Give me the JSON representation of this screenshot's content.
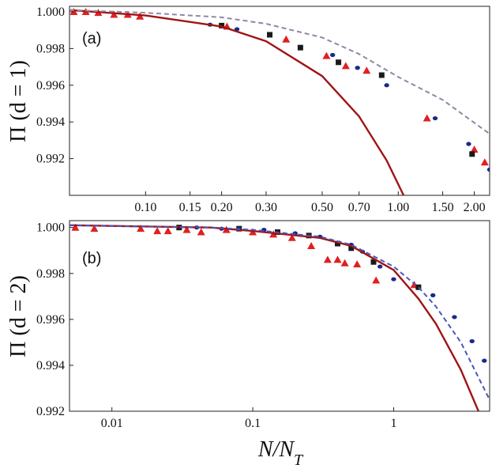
{
  "chart_data": [
    {
      "type": "scatter",
      "panel_label": "(a)",
      "ylabel": "Π (d = 1)",
      "xlabel": "",
      "x_scale": "log",
      "xlim": [
        0.05,
        2.3
      ],
      "ylim": [
        0.99,
        1.0003
      ],
      "x_ticks": [
        0.1,
        0.15,
        0.2,
        0.3,
        0.5,
        0.7,
        1.0,
        1.5,
        2.0
      ],
      "x_tick_labels": [
        "0.10",
        "0.15",
        "0.20",
        "0.30",
        "0.50",
        "0.70",
        "1.00",
        "1.50",
        "2.00"
      ],
      "y_ticks": [
        0.992,
        0.994,
        0.996,
        0.998,
        1.0
      ],
      "y_tick_labels": [
        "0.992",
        "0.994",
        "0.996",
        "0.998",
        "1.000"
      ],
      "grid": false,
      "series": [
        {
          "marker": "triangle",
          "color": "#e02020",
          "x": [
            0.052,
            0.058,
            0.065,
            0.075,
            0.085,
            0.095,
            0.21,
            0.36,
            0.52,
            0.62,
            0.75,
            1.3,
            2.0,
            2.2
          ],
          "y": [
            1.0,
            1.0,
            0.99995,
            0.99985,
            0.99985,
            0.99975,
            0.9992,
            0.9985,
            0.9976,
            0.99705,
            0.9968,
            0.9942,
            0.9925,
            0.9918
          ]
        },
        {
          "marker": "square",
          "color": "#1a1a1a",
          "x": [
            0.2,
            0.31,
            0.41,
            0.58,
            0.86,
            1.96
          ],
          "y": [
            0.99925,
            0.99875,
            0.99805,
            0.99725,
            0.99655,
            0.99225
          ]
        },
        {
          "marker": "circle",
          "color": "#1a2a8c",
          "x": [
            0.18,
            0.23,
            0.55,
            0.69,
            0.9,
            1.4,
            1.9,
            2.3
          ],
          "y": [
            0.9993,
            0.99905,
            0.99765,
            0.99695,
            0.996,
            0.9942,
            0.9928,
            0.9914
          ]
        },
        {
          "line": "solid",
          "color": "#a01414",
          "x": [
            0.05,
            0.1,
            0.2,
            0.3,
            0.5,
            0.7,
            0.9,
            1.05
          ],
          "y": [
            1.0001,
            0.9998,
            0.9992,
            0.9984,
            0.9965,
            0.9943,
            0.9919,
            0.99
          ]
        },
        {
          "line": "dashed",
          "color": "#8e88a6",
          "x": [
            0.05,
            0.1,
            0.2,
            0.3,
            0.5,
            0.7,
            1.0,
            1.5,
            2.3
          ],
          "y": [
            1.0001,
            0.99995,
            0.9997,
            0.99935,
            0.9986,
            0.9977,
            0.99645,
            0.9952,
            0.99335
          ]
        }
      ]
    },
    {
      "type": "scatter",
      "panel_label": "(b)",
      "ylabel": "Π (d = 2)",
      "xlabel": "N/N_T",
      "x_scale": "log",
      "xlim": [
        0.005,
        4.8
      ],
      "ylim": [
        0.992,
        1.0003
      ],
      "x_ticks": [
        0.01,
        0.1,
        1
      ],
      "x_tick_labels": [
        "0.01",
        "0.1",
        "1"
      ],
      "y_ticks": [
        0.992,
        0.994,
        0.996,
        0.998,
        1.0
      ],
      "y_tick_labels": [
        "0.992",
        "0.994",
        "0.996",
        "0.998",
        "1.000"
      ],
      "grid": false,
      "series": [
        {
          "marker": "triangle",
          "color": "#e02020",
          "x": [
            0.0055,
            0.0075,
            0.016,
            0.021,
            0.025,
            0.034,
            0.043,
            0.065,
            0.1,
            0.14,
            0.19,
            0.26,
            0.34,
            0.4,
            0.45,
            0.55,
            0.75,
            1.4
          ],
          "y": [
            1.0,
            0.99995,
            0.99995,
            0.99985,
            0.99985,
            0.9999,
            0.9998,
            0.9999,
            0.9998,
            0.9997,
            0.99955,
            0.9992,
            0.9986,
            0.9986,
            0.99845,
            0.9984,
            0.9977,
            0.9975
          ]
        },
        {
          "marker": "square",
          "color": "#1a1a1a",
          "x": [
            0.03,
            0.08,
            0.15,
            0.25,
            0.4,
            0.5,
            0.72,
            1.5
          ],
          "y": [
            1.0,
            0.99995,
            0.9998,
            0.99965,
            0.9993,
            0.9991,
            0.9985,
            0.9974
          ]
        },
        {
          "marker": "circle",
          "color": "#1a2a8c",
          "x": [
            0.04,
            0.06,
            0.08,
            0.12,
            0.2,
            0.3,
            0.5,
            0.6,
            0.8,
            1.0,
            1.9,
            2.7,
            3.6,
            4.4
          ],
          "y": [
            1.0,
            0.99995,
            0.99995,
            0.9999,
            0.99975,
            0.9996,
            0.99925,
            0.99895,
            0.9983,
            0.99775,
            0.99705,
            0.9961,
            0.99505,
            0.9942
          ]
        },
        {
          "line": "solid",
          "color": "#a01414",
          "x": [
            0.005,
            0.05,
            0.1,
            0.3,
            0.5,
            1,
            1.5,
            2,
            3,
            4
          ],
          "y": [
            1.0001,
            1.0,
            0.99985,
            0.99955,
            0.9992,
            0.99815,
            0.9969,
            0.9958,
            0.9938,
            0.992
          ]
        },
        {
          "line": "dashed",
          "color": "#4a56b8",
          "x": [
            0.005,
            0.05,
            0.1,
            0.3,
            0.5,
            1,
            1.5,
            2,
            3,
            4.8
          ],
          "y": [
            1.0001,
            1.0,
            0.9999,
            0.9996,
            0.99925,
            0.9983,
            0.9974,
            0.99655,
            0.995,
            0.9925
          ]
        }
      ]
    }
  ]
}
